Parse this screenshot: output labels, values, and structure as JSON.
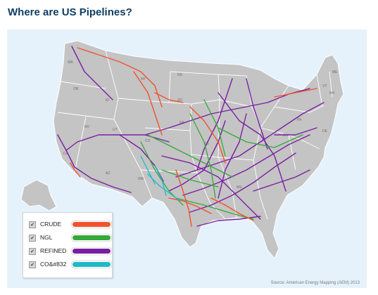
{
  "page": {
    "title": "Where are US Pipelines?"
  },
  "map": {
    "source": "Source: American Energy Mapping (AEM) 2013",
    "state_labels": [
      "WA",
      "OR",
      "ID",
      "MT",
      "ND",
      "SD",
      "NE",
      "NV",
      "UT",
      "CO",
      "CA",
      "AZ",
      "NM",
      "MS",
      "DE",
      "PA",
      "WV",
      "VT",
      "NH",
      "ME",
      "KS"
    ],
    "colors": {
      "background": "#e6f2fb",
      "land": "#c4c4c4",
      "border": "#ffffff",
      "title": "#0f3d63"
    }
  },
  "legend": {
    "items": [
      {
        "label": "CRUDE",
        "color": "#f0522e",
        "checked": true,
        "check_glyph": "✔"
      },
      {
        "label": "NGL",
        "color": "#35a83a",
        "checked": true,
        "check_glyph": "✔"
      },
      {
        "label": "REFINED",
        "color": "#7a1fa2",
        "checked": true,
        "check_glyph": "✔"
      },
      {
        "label": "CO&#832",
        "color": "#1fb9c9",
        "checked": true,
        "check_glyph": "✔"
      }
    ]
  }
}
